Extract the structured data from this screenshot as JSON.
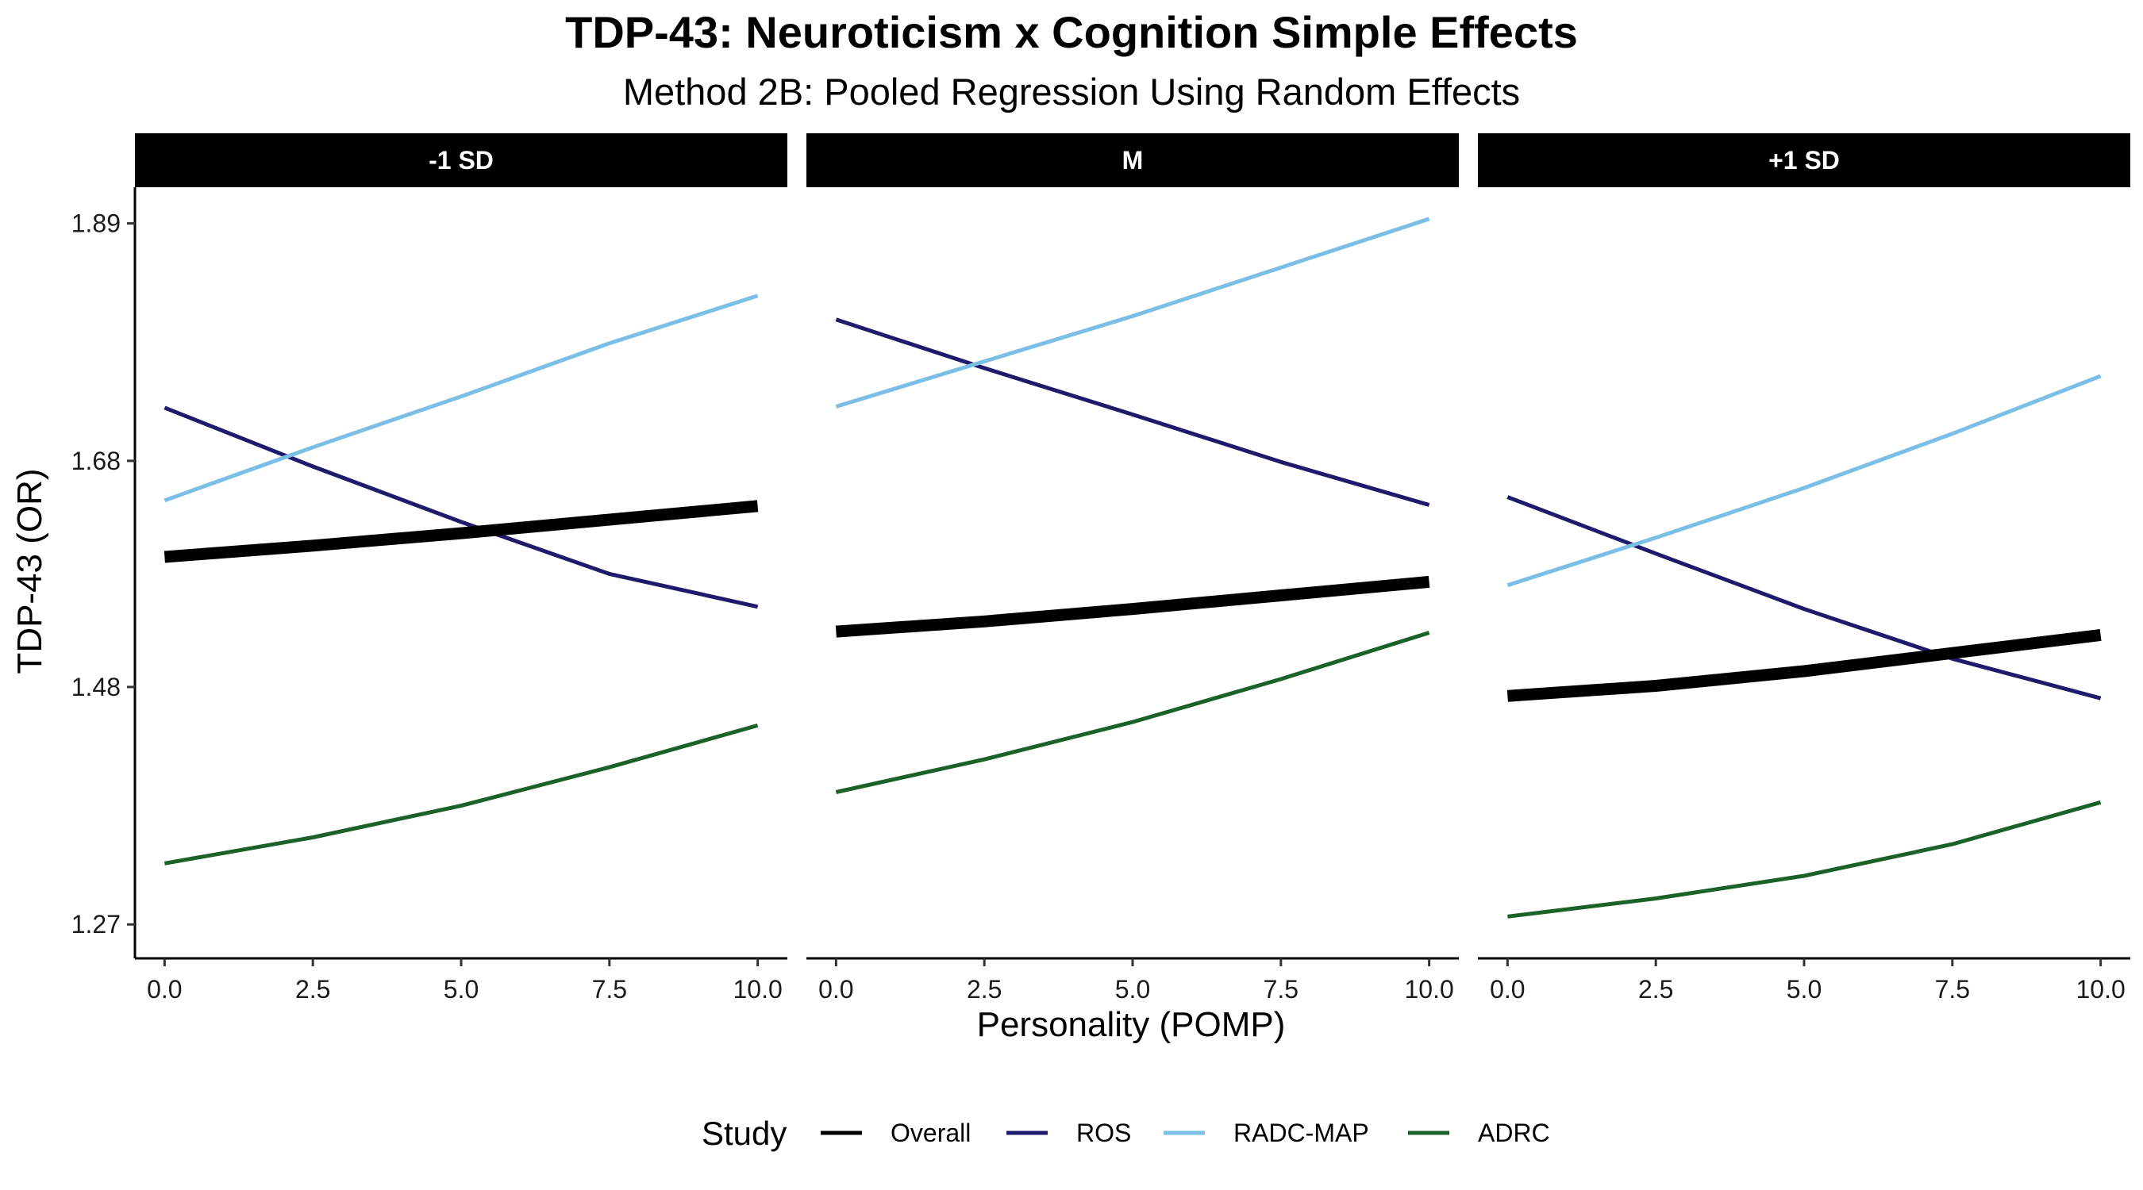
{
  "chart_data": {
    "type": "line",
    "title": "TDP-43: Neuroticism x Cognition Simple Effects",
    "subtitle": "Method 2B: Pooled Regression Using Random Effects",
    "xlabel": "Personality (POMP)",
    "ylabel": "TDP-43 (OR)",
    "xlim": [
      -0.5,
      10.5
    ],
    "ylim": [
      1.24,
      1.922
    ],
    "x_ticks": [
      0,
      2.5,
      5,
      7.5,
      10
    ],
    "x_tick_labels": [
      "0.0",
      "2.5",
      "5.0",
      "7.5",
      "10.0"
    ],
    "y_ticks": [
      1.27,
      1.48,
      1.68,
      1.89
    ],
    "y_tick_labels": [
      "1.27",
      "1.48",
      "1.68",
      "1.89"
    ],
    "grid": false,
    "legend": {
      "title": "Study",
      "position": "bottom",
      "entries": [
        {
          "name": "Overall",
          "color": "#000000"
        },
        {
          "name": "ROS",
          "color": "#1f1a6b"
        },
        {
          "name": "RADC-MAP",
          "color": "#7bbfe6"
        },
        {
          "name": "ADRC",
          "color": "#1b6228"
        }
      ]
    },
    "x": [
      0,
      2.5,
      5,
      7.5,
      10
    ],
    "panels": [
      {
        "label": "-1 SD",
        "series": [
          {
            "name": "Overall",
            "values": [
              1.595,
              1.605,
              1.616,
              1.628,
              1.64
            ]
          },
          {
            "name": "ROS",
            "values": [
              1.727,
              1.675,
              1.626,
              1.58,
              1.551
            ]
          },
          {
            "name": "RADC-MAP",
            "values": [
              1.645,
              1.692,
              1.737,
              1.784,
              1.826
            ]
          },
          {
            "name": "ADRC",
            "values": [
              1.324,
              1.347,
              1.375,
              1.409,
              1.446
            ]
          }
        ]
      },
      {
        "label": "M",
        "series": [
          {
            "name": "Overall",
            "values": [
              1.529,
              1.538,
              1.549,
              1.561,
              1.573
            ]
          },
          {
            "name": "ROS",
            "values": [
              1.805,
              1.762,
              1.721,
              1.679,
              1.641
            ]
          },
          {
            "name": "RADC-MAP",
            "values": [
              1.728,
              1.768,
              1.808,
              1.851,
              1.894
            ]
          },
          {
            "name": "ADRC",
            "values": [
              1.387,
              1.416,
              1.449,
              1.487,
              1.528
            ]
          }
        ]
      },
      {
        "label": "+1 SD",
        "series": [
          {
            "name": "Overall",
            "values": [
              1.472,
              1.481,
              1.494,
              1.51,
              1.526
            ]
          },
          {
            "name": "ROS",
            "values": [
              1.648,
              1.598,
              1.549,
              1.505,
              1.47
            ]
          },
          {
            "name": "RADC-MAP",
            "values": [
              1.57,
              1.612,
              1.656,
              1.704,
              1.755
            ]
          },
          {
            "name": "ADRC",
            "values": [
              1.277,
              1.293,
              1.313,
              1.341,
              1.378
            ]
          }
        ]
      }
    ]
  }
}
